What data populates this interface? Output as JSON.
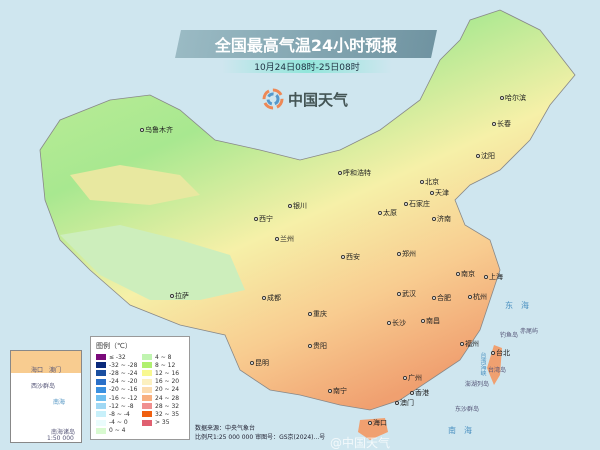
{
  "header": {
    "title": "全国最高气温24小时预报",
    "subtitle": "10月24日08时-25日08时",
    "logo_text": "中国天气"
  },
  "cities": [
    {
      "name": "乌鲁木齐"
    },
    {
      "name": "哈尔滨"
    },
    {
      "name": "长春"
    },
    {
      "name": "沈阳"
    },
    {
      "name": "呼和浩特"
    },
    {
      "name": "北京"
    },
    {
      "name": "天津"
    },
    {
      "name": "银川"
    },
    {
      "name": "太原"
    },
    {
      "name": "石家庄"
    },
    {
      "name": "济南"
    },
    {
      "name": "西宁"
    },
    {
      "name": "兰州"
    },
    {
      "name": "西安"
    },
    {
      "name": "郑州"
    },
    {
      "name": "合肥"
    },
    {
      "name": "南京"
    },
    {
      "name": "上海"
    },
    {
      "name": "成都"
    },
    {
      "name": "武汉"
    },
    {
      "name": "杭州"
    },
    {
      "name": "重庆"
    },
    {
      "name": "长沙"
    },
    {
      "name": "南昌"
    },
    {
      "name": "拉萨"
    },
    {
      "name": "贵阳"
    },
    {
      "name": "福州"
    },
    {
      "name": "昆明"
    },
    {
      "name": "南宁"
    },
    {
      "name": "广州"
    },
    {
      "name": "台北"
    },
    {
      "name": "香港"
    },
    {
      "name": "澳门"
    },
    {
      "name": "海口"
    }
  ],
  "seas": {
    "east": "东海",
    "south": "南海",
    "strait": "台湾海峡"
  },
  "islands": [
    "钓鱼岛",
    "赤尾屿",
    "台湾岛",
    "澎湖列岛",
    "东沙群岛"
  ],
  "legend": {
    "title": "图例（℃）",
    "items": [
      {
        "label": "≤ -32",
        "color": "#7a0a7a"
      },
      {
        "label": "-32 ~ -28",
        "color": "#0a2a7a"
      },
      {
        "label": "-28 ~ -24",
        "color": "#1a4fa0"
      },
      {
        "label": "-24 ~ -20",
        "color": "#2a70c8"
      },
      {
        "label": "-20 ~ -16",
        "color": "#3a90e0"
      },
      {
        "label": "-16 ~ -12",
        "color": "#70c0f0"
      },
      {
        "label": "-12 ~ -8",
        "color": "#a0d8f4"
      },
      {
        "label": "-8 ~ -4",
        "color": "#c8f0fa"
      },
      {
        "label": "-4 ~ 0",
        "color": "#eafcfc"
      },
      {
        "label": "0 ~ 4",
        "color": "#d8fad0"
      },
      {
        "label": "4 ~ 8",
        "color": "#c0f4b0"
      },
      {
        "label": "8 ~ 12",
        "color": "#b0f070"
      },
      {
        "label": "12 ~ 16",
        "color": "#f8f890"
      },
      {
        "label": "16 ~ 20",
        "color": "#fcf0c0"
      },
      {
        "label": "20 ~ 24",
        "color": "#fcdcb0"
      },
      {
        "label": "24 ~ 28",
        "color": "#f8b080"
      },
      {
        "label": "28 ~ 32",
        "color": "#f09090"
      },
      {
        "label": "32 ~ 35",
        "color": "#f06010"
      },
      {
        "label": "> 35",
        "color": "#e06070"
      }
    ]
  },
  "inset": {
    "title": "南海诸岛",
    "scale": "1:50 000 000",
    "labels": [
      "海口",
      "澳门",
      "西沙群岛",
      "南海"
    ]
  },
  "footer": {
    "source": "数据来源：中央气象台",
    "scale": "比例尺1:25 000 000  审图号：GS京(2024)...号",
    "watermark": "@中国天气"
  }
}
